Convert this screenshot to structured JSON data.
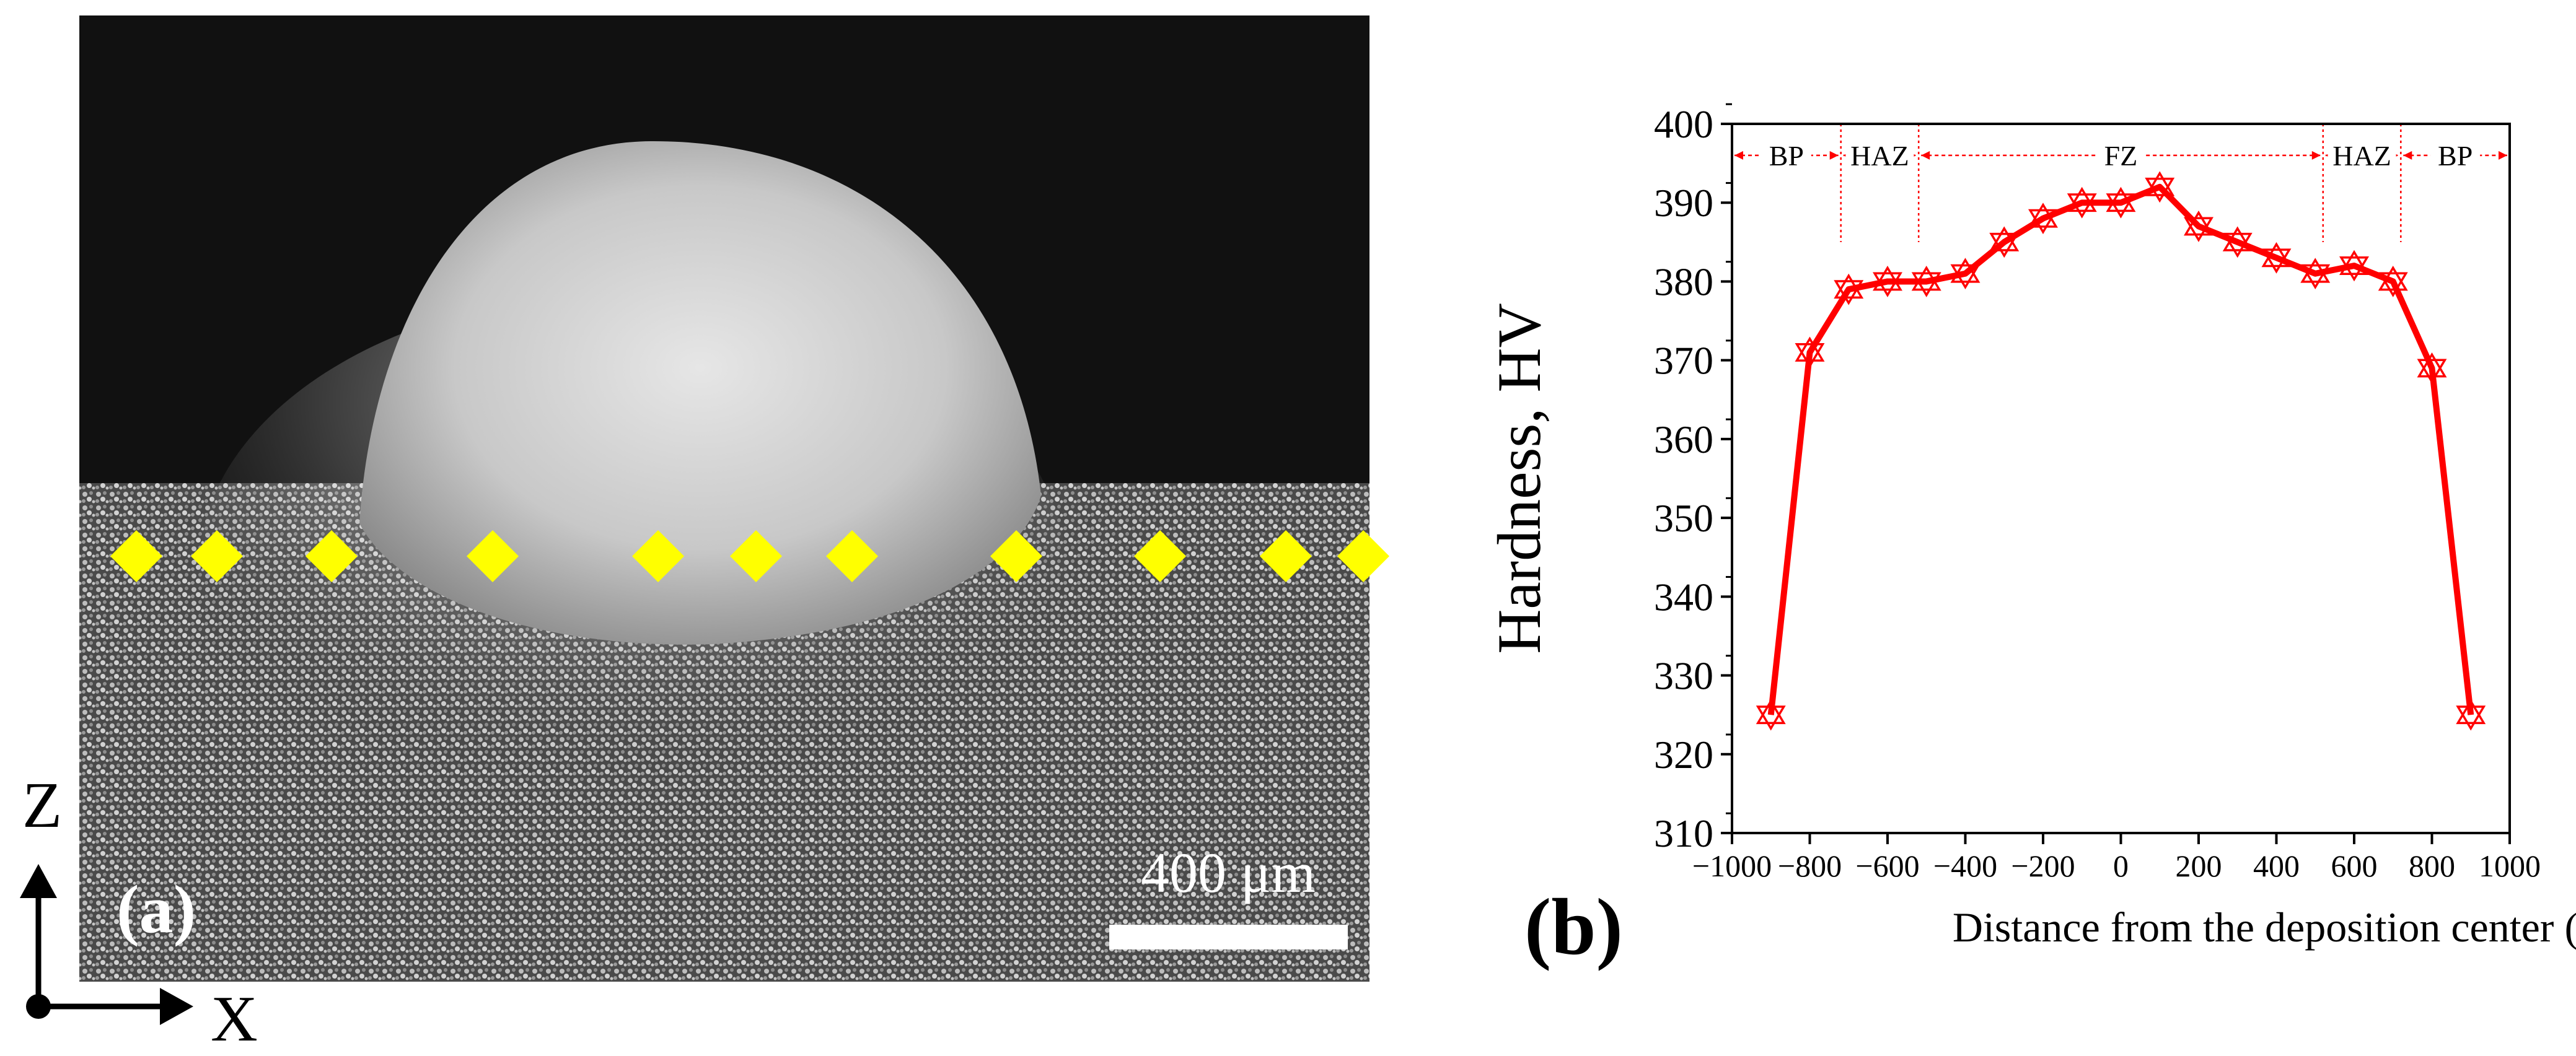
{
  "panel_a": {
    "label": "(a)",
    "scale_bar_label": "400 μm",
    "axis_z": "Z",
    "axis_x": "X",
    "indent_marker_count": 11,
    "marker_color": "#FFFF00",
    "background_color": "#111111"
  },
  "panel_b": {
    "label": "(b)"
  },
  "chart_data": {
    "type": "line",
    "title": "",
    "xlabel": "Distance from the deposition center (μm)",
    "ylabel": "Hardness, HV",
    "xlim": [
      -1000,
      1000
    ],
    "ylim": [
      310,
      400
    ],
    "xticks": [
      -1000,
      -800,
      -600,
      -400,
      -200,
      0,
      200,
      400,
      600,
      800,
      1000
    ],
    "yticks": [
      310,
      320,
      330,
      340,
      350,
      360,
      370,
      380,
      390,
      400
    ],
    "series": [
      {
        "name": "Hardness",
        "color": "#FF0000",
        "marker": "star",
        "x": [
          -900,
          -800,
          -700,
          -600,
          -500,
          -400,
          -300,
          -200,
          -100,
          0,
          100,
          200,
          300,
          400,
          500,
          600,
          700,
          800,
          900
        ],
        "y": [
          325,
          371,
          379,
          380,
          380,
          381,
          385,
          388,
          390,
          390,
          392,
          387,
          385,
          383,
          381,
          382,
          380,
          369,
          325
        ]
      }
    ],
    "regions": [
      {
        "label": "BP",
        "from": -1000,
        "to": -720
      },
      {
        "label": "HAZ",
        "from": -720,
        "to": -520
      },
      {
        "label": "FZ",
        "from": -520,
        "to": 520
      },
      {
        "label": "HAZ",
        "from": 520,
        "to": 720
      },
      {
        "label": "BP",
        "from": 720,
        "to": 1000
      }
    ],
    "region_color": "#FF0000"
  }
}
